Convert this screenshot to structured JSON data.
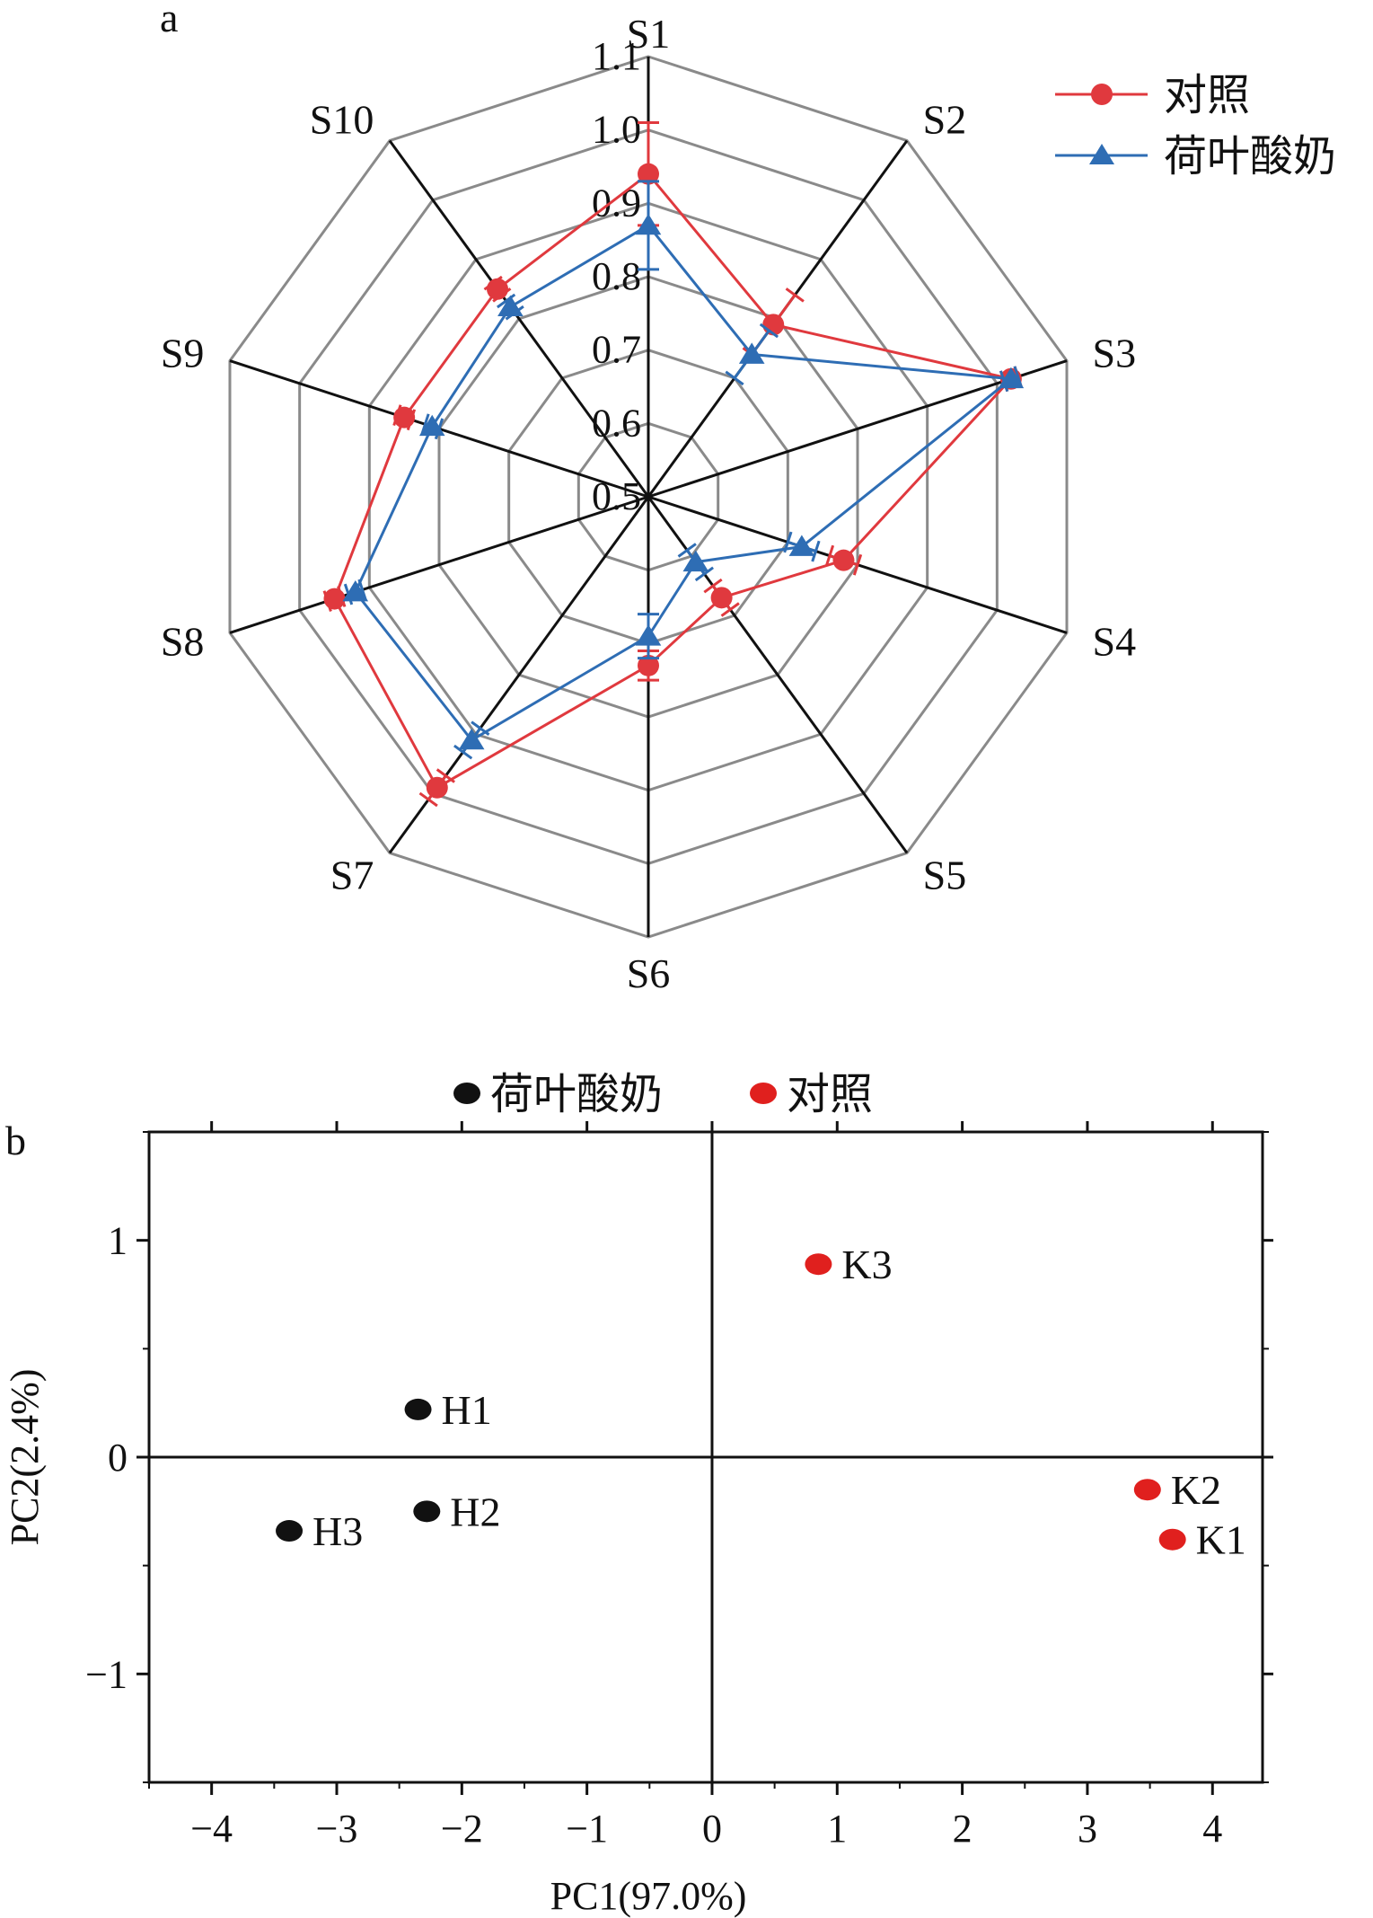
{
  "chart_data": [
    {
      "panel": "a",
      "type": "radar",
      "axes": [
        "S1",
        "S2",
        "S3",
        "S4",
        "S5",
        "S6",
        "S7",
        "S8",
        "S9",
        "S10"
      ],
      "rlim": [
        0.5,
        1.1
      ],
      "rticks": [
        "0.5",
        "0.6",
        "0.7",
        "0.8",
        "0.9",
        "1.0",
        "1.1"
      ],
      "grid": true,
      "legend_position": "top-right",
      "series": [
        {
          "name": "对照",
          "color": "#e0393e",
          "marker": "circle",
          "values": [
            0.94,
            0.79,
            1.02,
            0.78,
            0.67,
            0.73,
            0.99,
            0.95,
            0.85,
            0.85
          ],
          "errors": [
            0.07,
            0.05,
            0.01,
            0.02,
            0.02,
            0.02,
            0.02,
            0.01,
            0.01,
            0.01
          ]
        },
        {
          "name": "荷叶酸奶",
          "color": "#2e6db4",
          "marker": "triangle",
          "values": [
            0.87,
            0.74,
            1.02,
            0.72,
            0.61,
            0.69,
            0.91,
            0.92,
            0.81,
            0.82
          ],
          "errors": [
            0.06,
            0.04,
            0.01,
            0.02,
            0.02,
            0.03,
            0.02,
            0.01,
            0.01,
            0.01
          ]
        }
      ]
    },
    {
      "panel": "b",
      "type": "scatter",
      "xlabel": "PC1(97.0%)",
      "ylabel": "PC2(2.4%)",
      "xlim": [
        -4.5,
        4.4
      ],
      "ylim": [
        -1.5,
        1.5
      ],
      "xticks": [
        "−4",
        "−3",
        "−2",
        "−1",
        "0",
        "1",
        "2",
        "3",
        "4"
      ],
      "yticks": [
        "−1",
        "0",
        "1"
      ],
      "legend_position": "top-center",
      "series": [
        {
          "name": "荷叶酸奶",
          "color": "#111111",
          "points": [
            {
              "label": "H1",
              "x": -2.35,
              "y": 0.22
            },
            {
              "label": "H2",
              "x": -2.28,
              "y": -0.25
            },
            {
              "label": "H3",
              "x": -3.38,
              "y": -0.34
            }
          ]
        },
        {
          "name": "对照",
          "color": "#e0201e",
          "points": [
            {
              "label": "K1",
              "x": 3.68,
              "y": -0.38
            },
            {
              "label": "K2",
              "x": 3.48,
              "y": -0.15
            },
            {
              "label": "K3",
              "x": 0.85,
              "y": 0.89
            }
          ]
        }
      ]
    }
  ]
}
